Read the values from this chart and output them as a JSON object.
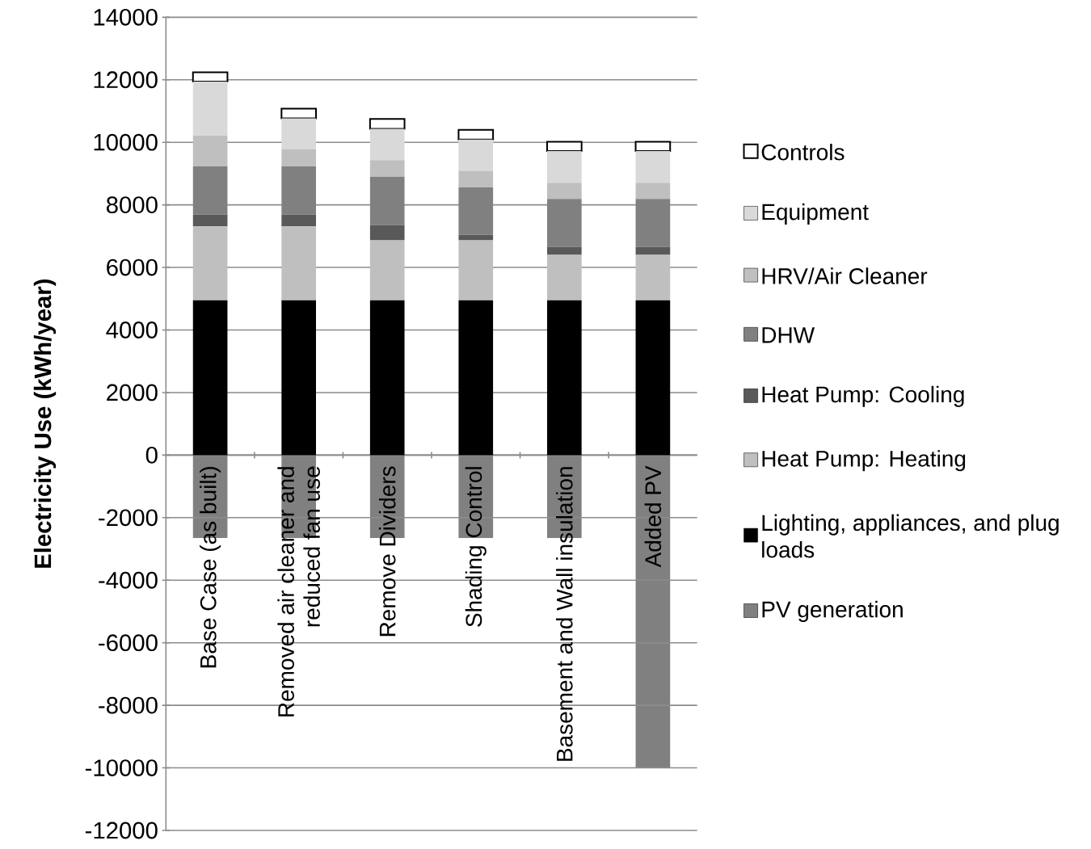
{
  "chart_data": {
    "type": "bar",
    "stacked": true,
    "ylabel": "Electricity Use  (kWh/year)",
    "categories": [
      "Base Case  (as built)",
      "Removed air cleaner and reduced fan use",
      "Remove Dividers",
      "Shading Control",
      "Basement and Wall insulation",
      "Added PV"
    ],
    "series": [
      {
        "name": "Lighting, appliances, and plug loads",
        "color": "#000000",
        "values": [
          4950,
          4950,
          4950,
          4950,
          4950,
          4950
        ]
      },
      {
        "name": "Heat Pump: Heating",
        "color": "#bfbfbf",
        "values": [
          2360,
          2360,
          1920,
          1920,
          1450,
          1450
        ]
      },
      {
        "name": "Heat Pump: Cooling",
        "color": "#595959",
        "values": [
          380,
          380,
          490,
          170,
          260,
          260
        ]
      },
      {
        "name": "DHW",
        "color": "#808080",
        "values": [
          1540,
          1540,
          1540,
          1520,
          1530,
          1530
        ]
      },
      {
        "name": "HRV/Air Cleaner",
        "color": "#bfbfbf",
        "values": [
          980,
          540,
          530,
          530,
          520,
          520
        ]
      },
      {
        "name": "Equipment",
        "color": "#d9d9d9",
        "values": [
          1730,
          1000,
          1000,
          1000,
          1010,
          1010
        ]
      },
      {
        "name": "Controls",
        "color": "#ffffff",
        "values": [
          300,
          310,
          320,
          310,
          300,
          300
        ]
      },
      {
        "name": "PV generation",
        "color": "#808080",
        "values": [
          -2650,
          -2650,
          -2650,
          -2650,
          -2650,
          -10000
        ]
      }
    ],
    "ylim": [
      -12000,
      14000
    ],
    "yticks": [
      -12000,
      -10000,
      -8000,
      -6000,
      -4000,
      -2000,
      0,
      2000,
      4000,
      6000,
      8000,
      10000,
      12000,
      14000
    ],
    "grid": "y",
    "legend": "right"
  }
}
